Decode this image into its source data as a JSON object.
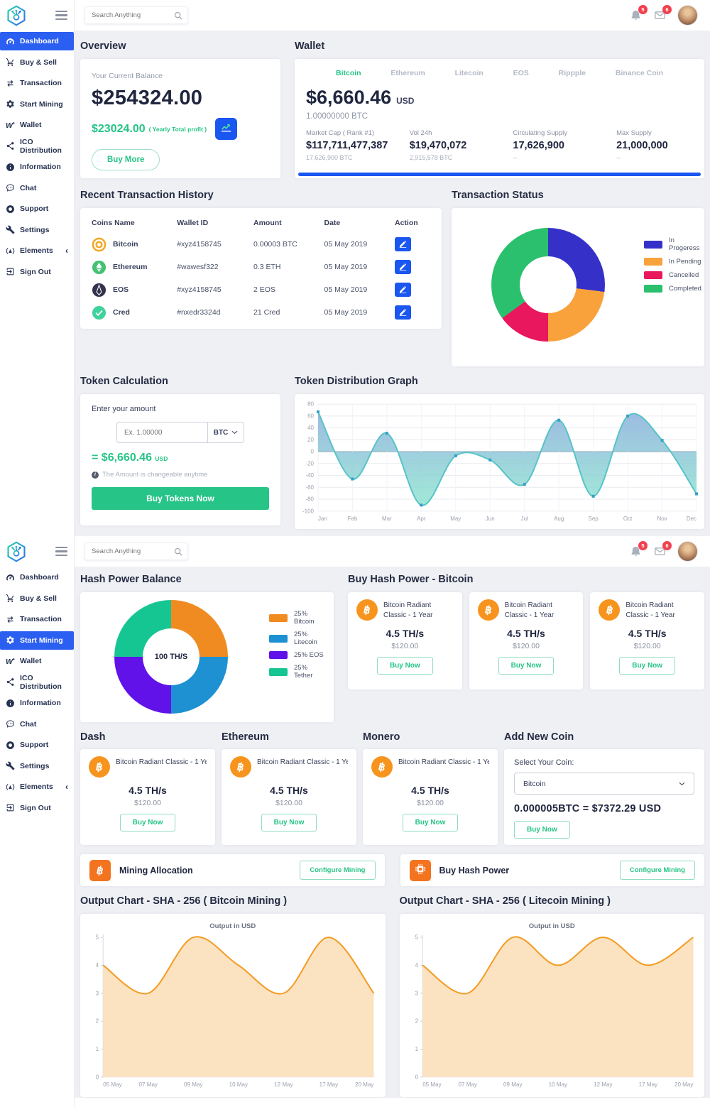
{
  "colors": {
    "accent_blue": "#2b5ff1",
    "accent_green": "#26c487",
    "orange": "#f7941d",
    "badge_red": "#f2404e",
    "edit_blue": "#1a56f0"
  },
  "topbar": {
    "search_placeholder": "Search Anything",
    "bell_badge": "5",
    "mail_badge": "6"
  },
  "sidebar": {
    "items": [
      {
        "label": "Dashboard",
        "icon": "dashboard-icon"
      },
      {
        "label": "Buy & Sell",
        "icon": "cart-icon"
      },
      {
        "label": "Transaction",
        "icon": "transfer-icon"
      },
      {
        "label": "Start Mining",
        "icon": "gear-icon"
      },
      {
        "label": "Wallet",
        "icon": "wallet-icon"
      },
      {
        "label": "ICO Distribution",
        "icon": "network-icon"
      },
      {
        "label": "Information",
        "icon": "info-icon"
      },
      {
        "label": "Chat",
        "icon": "chat-icon"
      },
      {
        "label": "Support",
        "icon": "support-icon"
      },
      {
        "label": "Settings",
        "icon": "wrench-icon"
      },
      {
        "label": "Elements",
        "icon": "elements-icon",
        "chevron": "‹"
      },
      {
        "label": "Sign Out",
        "icon": "signout-icon"
      }
    ]
  },
  "dashboard": {
    "overview": {
      "title": "Overview",
      "balance_label": "Your Current Balance",
      "balance": "$254324.00",
      "profit": "$23024.00",
      "profit_note": "( Yearly Total profit )",
      "buy_more_label": "Buy More"
    },
    "wallet": {
      "title": "Wallet",
      "tabs": [
        "Bitcoin",
        "Ethereum",
        "Litecoin",
        "EOS",
        "Rippple",
        "Binance Coin"
      ],
      "active_tab": "Bitcoin",
      "amount": "$6,660.46",
      "currency": "USD",
      "btc_amount": "1.00000000 BTC",
      "stats": [
        {
          "label": "Market Cap ( Rank #1)",
          "value": "$117,711,477,387",
          "sub": "17,626,900 BTC"
        },
        {
          "label": "Vol 24h",
          "value": "$19,470,072",
          "sub": "2,915,578 BTC"
        },
        {
          "label": "Circulating Supply",
          "value": "17,626,900",
          "sub": "--"
        },
        {
          "label": "Max Supply",
          "value": "21,000,000",
          "sub": "--"
        }
      ]
    },
    "transactions": {
      "title": "Recent Transaction History",
      "headers": [
        "Coins Name",
        "Wallet ID",
        "Amount",
        "Date",
        "Action"
      ],
      "rows": [
        {
          "coin": "Bitcoin",
          "icon": "bitcoin-coin-icon",
          "wallet_id": "#xyz4158745",
          "amount": "0.00003 BTC",
          "date": "05 May 2019"
        },
        {
          "coin": "Ethereum",
          "icon": "ethereum-coin-icon",
          "wallet_id": "#wawesf322",
          "amount": "0.3 ETH",
          "date": "05 May 2019"
        },
        {
          "coin": "EOS",
          "icon": "eos-coin-icon",
          "wallet_id": "#xyz4158745",
          "amount": "2 EOS",
          "date": "05 May 2019"
        },
        {
          "coin": "Cred",
          "icon": "cred-coin-icon",
          "wallet_id": "#nxedr3324d",
          "amount": "21 Cred",
          "date": "05 May 2019"
        }
      ]
    },
    "status": {
      "title": "Transaction Status"
    },
    "token_calc": {
      "title": "Token Calculation",
      "amount_label": "Enter your amount",
      "input_placeholder": "Ex. 1.00000",
      "currency": "BTC",
      "result": "= $6,660.46",
      "result_unit": "USD",
      "note": "The Amount is changeable anytime",
      "buy_label": "Buy Tokens Now"
    },
    "token_graph": {
      "title": "Token Distribution Graph"
    }
  },
  "mining": {
    "hash_balance": {
      "title": "Hash Power Balance"
    },
    "buy_hash": {
      "title": "Buy Hash Power - Bitcoin",
      "cards": [
        {
          "name": "Bitcoin Radiant Classic - 1 Year",
          "rate": "4.5 TH/s",
          "price": "$120.00",
          "buy_label": "Buy Now"
        },
        {
          "name": "Bitcoin Radiant Classic - 1 Year",
          "rate": "4.5 TH/s",
          "price": "$120.00",
          "buy_label": "Buy Now"
        },
        {
          "name": "Bitcoin Radiant Classic - 1 Year",
          "rate": "4.5 TH/s",
          "price": "$120.00",
          "buy_label": "Buy Now"
        }
      ]
    },
    "coin_sections": [
      {
        "title": "Dash",
        "card": {
          "name": "Bitcoin Radiant Classic - 1 Year",
          "rate": "4.5 TH/s",
          "price": "$120.00",
          "buy_label": "Buy Now"
        }
      },
      {
        "title": "Ethereum",
        "card": {
          "name": "Bitcoin Radiant Classic - 1 Year",
          "rate": "4.5 TH/s",
          "price": "$120.00",
          "buy_label": "Buy Now"
        }
      },
      {
        "title": "Monero",
        "card": {
          "name": "Bitcoin Radiant Classic - 1 Year",
          "rate": "4.5 TH/s",
          "price": "$120.00",
          "buy_label": "Buy Now"
        }
      }
    ],
    "add_coin": {
      "title": "Add New Coin",
      "select_label": "Select Your Coin:",
      "selected_coin": "Bitcoin",
      "conversion": "0.000005BTC = $7372.29 USD",
      "buy_label": "Buy Now"
    },
    "config_rows": [
      {
        "label": "Mining Allocation",
        "icon": "bitcoin-square-icon",
        "button_label": "Configure Mining"
      },
      {
        "label": "Buy Hash Power",
        "icon": "chip-icon",
        "button_label": "Configure Mining"
      }
    ],
    "output_charts": [
      {
        "title": "Output Chart - SHA - 256 ( Bitcoin Mining )"
      },
      {
        "title": "Output Chart - SHA - 256 ( Litecoin Mining )"
      }
    ]
  },
  "chart_data": [
    {
      "id": "transaction-status",
      "type": "pie",
      "labels": [
        "In Progeress",
        "In Pending",
        "Cancelled",
        "Completed"
      ],
      "values": [
        27,
        23,
        15,
        35
      ],
      "colors": [
        "#3531c8",
        "#f9a23b",
        "#e9175d",
        "#2bc06d"
      ],
      "hole": 0.5,
      "legend_position": "right"
    },
    {
      "id": "token-distribution",
      "type": "area",
      "x": [
        "Jan",
        "Feb",
        "Mar",
        "Apr",
        "May",
        "Jun",
        "Jul",
        "Aug",
        "Sep",
        "Oct",
        "Nov",
        "Dec"
      ],
      "values": [
        67,
        -46,
        31,
        -90,
        -7,
        -14,
        -55,
        53,
        -75,
        60,
        19,
        -71
      ],
      "ylim": [
        -100,
        80
      ],
      "yticks": [
        80,
        60,
        40,
        20,
        0,
        -20,
        -40,
        -60,
        -80,
        -100
      ],
      "baseline": 0,
      "grid": true,
      "line_color": "#58c3c7",
      "marker_color": "#35a0c6",
      "fill_gradient": [
        "#8bb0dc",
        "#90e5d1"
      ]
    },
    {
      "id": "hash-power-balance",
      "type": "pie",
      "labels": [
        "25% Bitcoin",
        "25% Litecoin",
        "25% EOS",
        "25% Tether"
      ],
      "values": [
        25,
        25,
        25,
        25
      ],
      "colors": [
        "#f08b21",
        "#1d91d1",
        "#6012e8",
        "#15c693"
      ],
      "hole": 0.47,
      "center_label": "100 TH/S",
      "legend_position": "right"
    },
    {
      "id": "output-bitcoin",
      "type": "area",
      "title": "Output in USD",
      "x": [
        "05 May",
        "07 May",
        "09 May",
        "10 May",
        "12 May",
        "17 May",
        "20 May"
      ],
      "values": [
        4,
        3,
        5,
        4,
        3,
        5,
        3
      ],
      "ylim": [
        0,
        5
      ],
      "yticks": [
        5,
        4,
        3,
        2,
        1,
        0
      ],
      "line_color": "#f49b22",
      "fill_color": "#fbe2c1"
    },
    {
      "id": "output-litecoin",
      "type": "area",
      "title": "Output in USD",
      "x": [
        "05 May",
        "07 May",
        "09 May",
        "10 May",
        "12 May",
        "17 May",
        "20 May"
      ],
      "values": [
        4,
        3,
        5,
        4,
        5,
        4,
        5
      ],
      "ylim": [
        0,
        5
      ],
      "yticks": [
        5,
        4,
        3,
        2,
        1,
        0
      ],
      "line_color": "#f49b22",
      "fill_color": "#fbe2c1"
    }
  ]
}
